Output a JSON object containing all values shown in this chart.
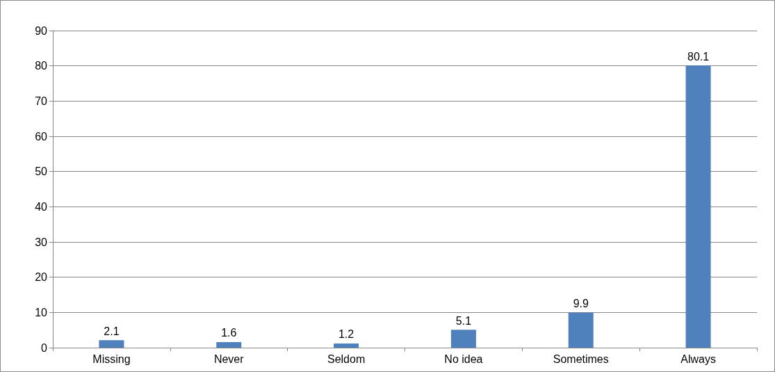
{
  "chart_data": {
    "type": "bar",
    "categories": [
      "Missing",
      "Never",
      "Seldom",
      "No idea",
      "Sometimes",
      "Always"
    ],
    "values": [
      2.1,
      1.6,
      1.2,
      5.1,
      9.9,
      80.1
    ],
    "color": "#4f81bd",
    "ylim": [
      0,
      90
    ],
    "yticks": [
      0,
      10,
      20,
      30,
      40,
      50,
      60,
      70,
      80,
      90
    ],
    "grid": "y",
    "data_labels": true
  }
}
